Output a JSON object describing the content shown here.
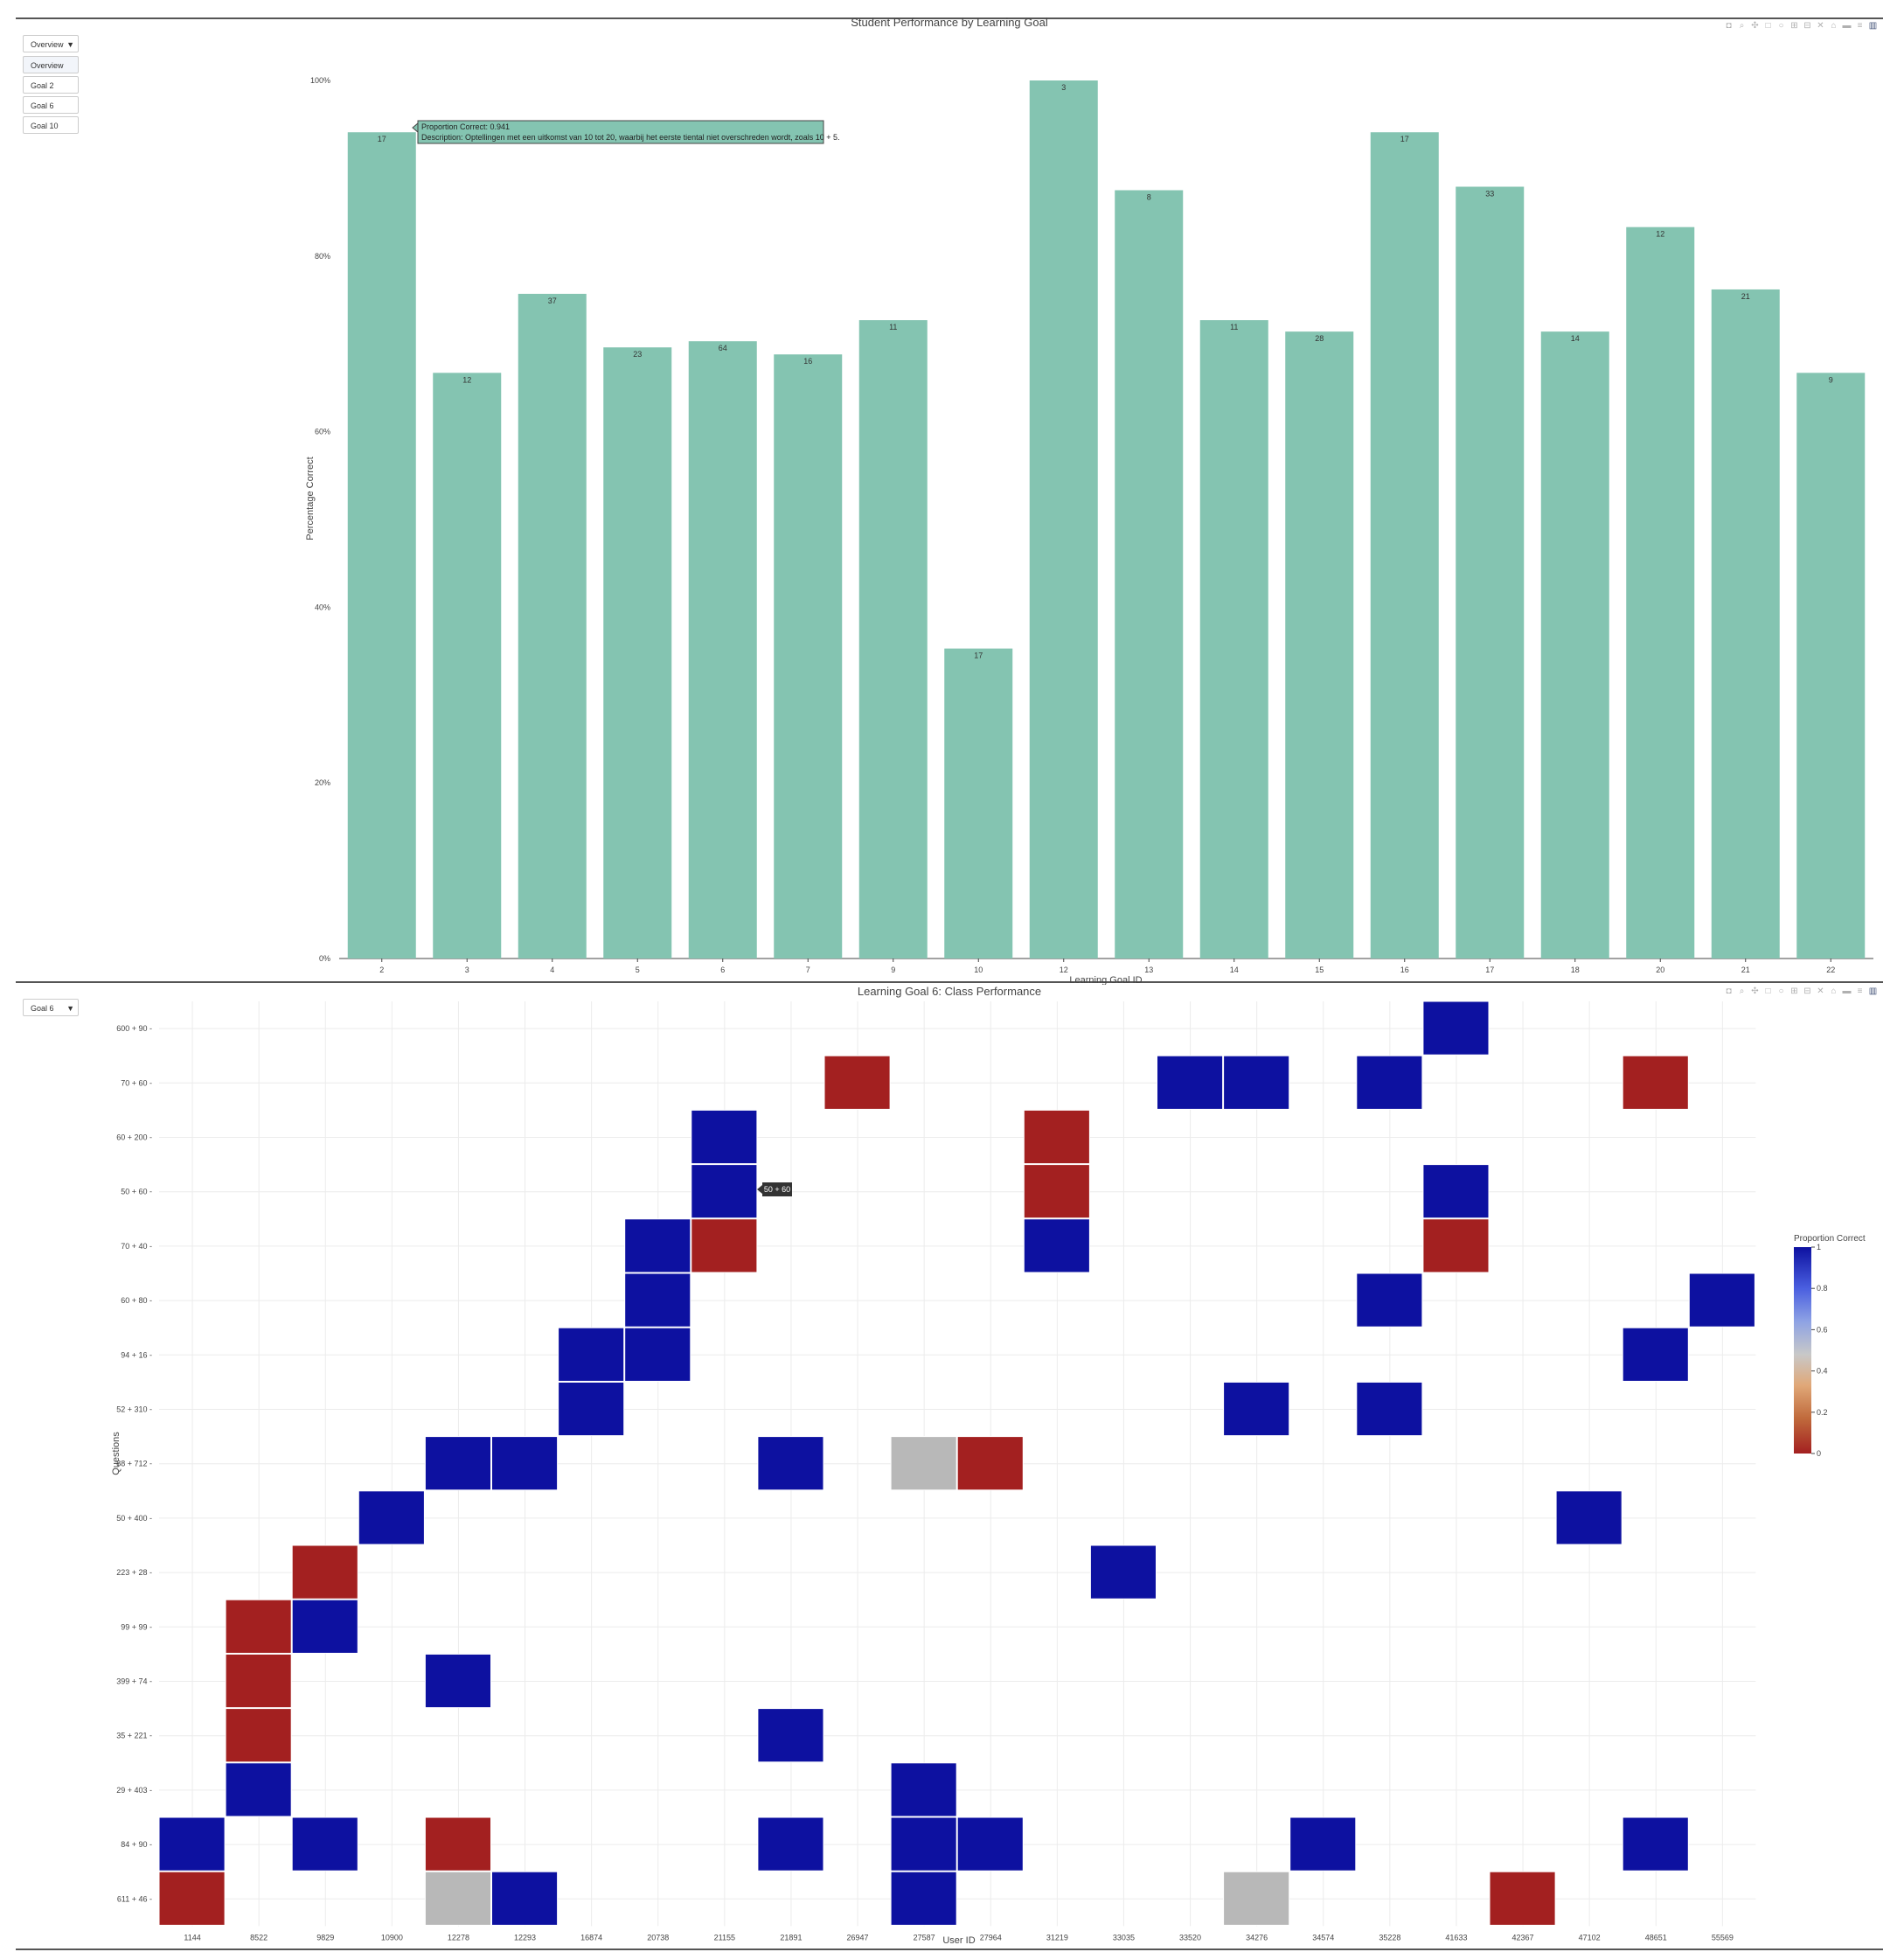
{
  "modebar_icons": [
    "camera-icon",
    "zoom-icon",
    "pan-icon",
    "box-select-icon",
    "lasso-icon",
    "zoom-in-icon",
    "zoom-out-icon",
    "autoscale-icon",
    "reset-icon",
    "spike-icon",
    "compare-icon",
    "plotly-logo-icon"
  ],
  "top": {
    "dropdown": {
      "selected": "Overview",
      "options": [
        "Overview",
        "Goal 2",
        "Goal 6",
        "Goal 10"
      ]
    },
    "tooltip": {
      "line1": "Proportion Correct: 0.941",
      "line2": "Description: Optellingen met een uitkomst van 10 tot 20, waarbij het eerste tiental niet overschreden wordt, zoals 10 + 5."
    }
  },
  "bottom": {
    "dropdown": {
      "selected": "Goal 6"
    },
    "hover_label": "50 + 60",
    "colorbar_ticks": [
      "1",
      "0.8",
      "0.6",
      "0.4",
      "0.2",
      "0"
    ],
    "colorscale": [
      "#a32020",
      "#c06a3c",
      "#e0a878",
      "#c8c8c8",
      "#8ea2e4",
      "#4a5fe0",
      "#0d11a0"
    ]
  },
  "chart_data": [
    {
      "type": "bar",
      "title": "Student Performance by Learning Goal",
      "xlabel": "Learning Goal ID",
      "ylabel": "Percentage Correct",
      "ylim": [
        0,
        1
      ],
      "yticks": [
        "0%",
        "20%",
        "40%",
        "60%",
        "80%",
        "100%"
      ],
      "color": "#84c4b1",
      "grid": false,
      "categories": [
        "2",
        "3",
        "4",
        "5",
        "6",
        "7",
        "9",
        "10",
        "12",
        "13",
        "14",
        "15",
        "16",
        "17",
        "18",
        "20",
        "21",
        "22"
      ],
      "values": [
        0.941,
        0.667,
        0.757,
        0.696,
        0.703,
        0.688,
        0.727,
        0.353,
        1.0,
        0.875,
        0.727,
        0.714,
        0.941,
        0.879,
        0.714,
        0.833,
        0.762,
        0.667
      ],
      "data_labels": [
        "17",
        "12",
        "37",
        "23",
        "64",
        "16",
        "11",
        "17",
        "3",
        "8",
        "11",
        "28",
        "17",
        "33",
        "14",
        "12",
        "21",
        "9"
      ]
    },
    {
      "type": "heatmap",
      "title": "Learning Goal 6: Class Performance",
      "xlabel": "User ID",
      "ylabel": "Questions",
      "colorbar_title": "Proportion Correct",
      "zlim": [
        0,
        1
      ],
      "grid": true,
      "x": [
        "1144",
        "8522",
        "9829",
        "10900",
        "12278",
        "12293",
        "16874",
        "20738",
        "21155",
        "21891",
        "26947",
        "27587",
        "27964",
        "31219",
        "33035",
        "33520",
        "34276",
        "34574",
        "35228",
        "41633",
        "42367",
        "47102",
        "48651",
        "55569"
      ],
      "y": [
        "611 + 46",
        "84 + 90",
        "29 + 403",
        "35 + 221",
        "399 + 74",
        "99 + 99",
        "223 + 28",
        "50 + 400",
        "88 + 712",
        "52 + 310",
        "94 + 16",
        "60 + 80",
        "70 + 40",
        "50 + 60",
        "60 + 200",
        "70 + 60",
        "600 + 90"
      ],
      "cells": [
        [
          "1144",
          "611 + 46",
          0
        ],
        [
          "12278",
          "611 + 46",
          0.5
        ],
        [
          "12293",
          "611 + 46",
          1
        ],
        [
          "27587",
          "611 + 46",
          1
        ],
        [
          "34276",
          "611 + 46",
          0.5
        ],
        [
          "42367",
          "611 + 46",
          0
        ],
        [
          "1144",
          "84 + 90",
          1
        ],
        [
          "9829",
          "84 + 90",
          1
        ],
        [
          "12278",
          "84 + 90",
          0
        ],
        [
          "21891",
          "84 + 90",
          1
        ],
        [
          "27587",
          "84 + 90",
          1
        ],
        [
          "27964",
          "84 + 90",
          1
        ],
        [
          "34574",
          "84 + 90",
          1
        ],
        [
          "48651",
          "84 + 90",
          1
        ],
        [
          "8522",
          "29 + 403",
          1
        ],
        [
          "27587",
          "29 + 403",
          1
        ],
        [
          "8522",
          "35 + 221",
          0
        ],
        [
          "21891",
          "35 + 221",
          1
        ],
        [
          "8522",
          "399 + 74",
          0
        ],
        [
          "12278",
          "399 + 74",
          1
        ],
        [
          "8522",
          "99 + 99",
          0
        ],
        [
          "9829",
          "99 + 99",
          1
        ],
        [
          "9829",
          "223 + 28",
          0
        ],
        [
          "33035",
          "223 + 28",
          1
        ],
        [
          "10900",
          "50 + 400",
          1
        ],
        [
          "47102",
          "50 + 400",
          1
        ],
        [
          "12278",
          "88 + 712",
          1
        ],
        [
          "12293",
          "88 + 712",
          1
        ],
        [
          "21891",
          "88 + 712",
          1
        ],
        [
          "27587",
          "88 + 712",
          0.5
        ],
        [
          "27964",
          "88 + 712",
          0
        ],
        [
          "16874",
          "52 + 310",
          1
        ],
        [
          "34276",
          "52 + 310",
          1
        ],
        [
          "35228",
          "52 + 310",
          1
        ],
        [
          "16874",
          "94 + 16",
          1
        ],
        [
          "20738",
          "94 + 16",
          1
        ],
        [
          "48651",
          "94 + 16",
          1
        ],
        [
          "20738",
          "60 + 80",
          1
        ],
        [
          "35228",
          "60 + 80",
          1
        ],
        [
          "55569",
          "60 + 80",
          1
        ],
        [
          "20738",
          "70 + 40",
          1
        ],
        [
          "21155",
          "70 + 40",
          0
        ],
        [
          "31219",
          "70 + 40",
          1
        ],
        [
          "41633",
          "70 + 40",
          0
        ],
        [
          "21155",
          "50 + 60",
          1
        ],
        [
          "31219",
          "50 + 60",
          0
        ],
        [
          "41633",
          "50 + 60",
          1
        ],
        [
          "21155",
          "60 + 200",
          1
        ],
        [
          "31219",
          "60 + 200",
          0
        ],
        [
          "26947",
          "70 + 60",
          0
        ],
        [
          "33520",
          "70 + 60",
          1
        ],
        [
          "34276",
          "70 + 60",
          1
        ],
        [
          "35228",
          "70 + 60",
          1
        ],
        [
          "48651",
          "70 + 60",
          0
        ],
        [
          "41633",
          "600 + 90",
          1
        ]
      ]
    }
  ]
}
